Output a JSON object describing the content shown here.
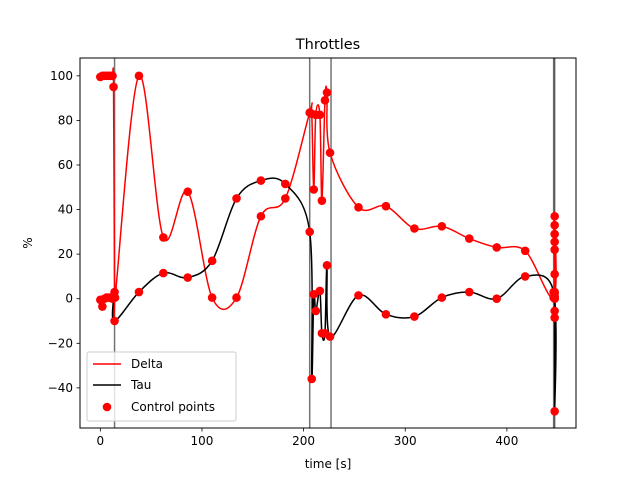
{
  "chart_data": {
    "type": "line",
    "title": "Throttles",
    "xlabel": "time [s]",
    "ylabel": "%",
    "xlim": [
      -20,
      468
    ],
    "ylim": [
      -58,
      108
    ],
    "xticks": [
      0,
      100,
      200,
      300,
      400
    ],
    "yticks": [
      -40,
      -20,
      0,
      20,
      40,
      60,
      80,
      100
    ],
    "grid": false,
    "legend_position": "lower-left",
    "vertical_lines": [
      14,
      206,
      227,
      446,
      447
    ],
    "series": [
      {
        "name": "Delta",
        "color": "#ff0000",
        "points": [
          [
            0,
            99.5
          ],
          [
            2,
            100
          ],
          [
            4,
            100
          ],
          [
            6,
            100
          ],
          [
            8,
            100
          ],
          [
            10,
            100
          ],
          [
            12,
            100
          ],
          [
            13,
            95
          ],
          [
            14,
            3
          ],
          [
            14.5,
            0.5
          ],
          [
            38,
            100
          ],
          [
            62,
            27.5
          ],
          [
            86,
            48
          ],
          [
            110,
            0.5
          ],
          [
            134,
            0.5
          ],
          [
            158,
            37
          ],
          [
            182,
            45
          ],
          [
            206,
            83.5
          ],
          [
            208,
            83
          ],
          [
            210,
            49
          ],
          [
            212,
            82.5
          ],
          [
            216,
            82.5
          ],
          [
            218,
            44
          ],
          [
            221,
            89
          ],
          [
            223,
            92.5
          ],
          [
            226,
            65.5
          ],
          [
            254,
            41
          ],
          [
            281,
            41.5
          ],
          [
            309,
            31.5
          ],
          [
            336,
            32.5
          ],
          [
            363,
            27
          ],
          [
            390,
            23
          ],
          [
            418,
            21.5
          ],
          [
            446,
            0.5
          ],
          [
            447,
            37
          ],
          [
            447,
            33
          ],
          [
            447,
            29
          ],
          [
            447,
            25.5
          ],
          [
            447,
            22
          ],
          [
            447,
            11
          ],
          [
            447,
            3
          ],
          [
            447,
            1
          ],
          [
            447,
            0
          ],
          [
            447,
            -5.5
          ]
        ]
      },
      {
        "name": "Tau",
        "color": "#000000",
        "points": [
          [
            0,
            -0.5
          ],
          [
            2,
            -3.5
          ],
          [
            4,
            0
          ],
          [
            6,
            0.5
          ],
          [
            8,
            0.5
          ],
          [
            10,
            0.5
          ],
          [
            12,
            0
          ],
          [
            13,
            1
          ],
          [
            14,
            -10
          ],
          [
            38,
            3
          ],
          [
            62,
            11.5
          ],
          [
            86,
            9.5
          ],
          [
            110,
            17
          ],
          [
            134,
            45
          ],
          [
            158,
            53
          ],
          [
            182,
            51.5
          ],
          [
            206,
            30
          ],
          [
            208,
            -36
          ],
          [
            210,
            2
          ],
          [
            212,
            -5.5
          ],
          [
            216,
            3.5
          ],
          [
            218,
            -15.5
          ],
          [
            221,
            -15.5
          ],
          [
            223,
            15
          ],
          [
            226,
            -17
          ],
          [
            254,
            1.5
          ],
          [
            281,
            -7
          ],
          [
            309,
            -8
          ],
          [
            336,
            0.5
          ],
          [
            363,
            3
          ],
          [
            390,
            0
          ],
          [
            418,
            10
          ],
          [
            446,
            3
          ],
          [
            447,
            -50.5
          ],
          [
            447,
            -8.5
          ],
          [
            447,
            0.5
          ],
          [
            447,
            2.5
          ]
        ]
      }
    ],
    "control_points": {
      "name": "Control points",
      "color": "#ff0000"
    },
    "legend": [
      "Delta",
      "Tau",
      "Control points"
    ]
  }
}
